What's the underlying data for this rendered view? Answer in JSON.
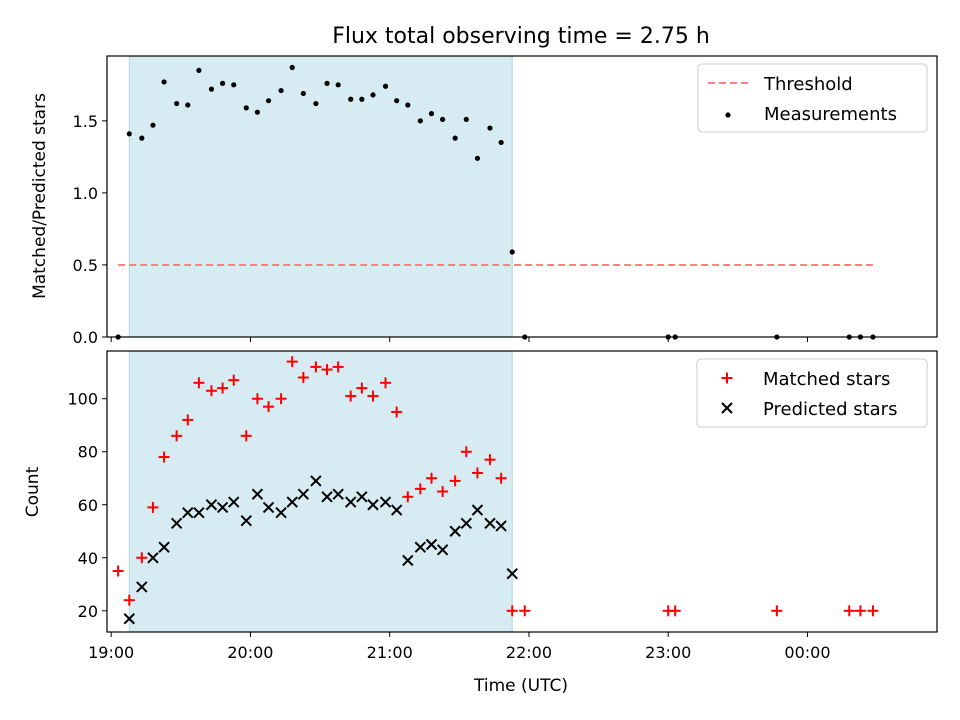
{
  "chart_data": [
    {
      "type": "scatter",
      "title": "Flux total observing time = 2.75 h",
      "xlabel": "",
      "ylabel": "Matched/Predicted stars",
      "ylim": [
        0,
        1.95
      ],
      "yticks": [
        0.0,
        0.5,
        1.0,
        1.5
      ],
      "ytick_labels": [
        "0.0",
        "0.5",
        "1.0",
        "1.5"
      ],
      "xlim_hours": [
        18.97,
        24.93
      ],
      "shaded_span_hours": [
        19.13,
        21.88
      ],
      "shade_color": "#add8e6",
      "legend_position": "upper right",
      "threshold": {
        "name": "Threshold",
        "value": 0.5,
        "x_hours": [
          19.05,
          24.47
        ],
        "color": "#ff7f7f",
        "style": "dashed"
      },
      "series": [
        {
          "name": "Measurements",
          "color": "#000000",
          "marker": "dot",
          "x_hours": [
            19.05,
            19.13,
            19.22,
            19.3,
            19.38,
            19.47,
            19.55,
            19.63,
            19.72,
            19.8,
            19.88,
            19.97,
            20.05,
            20.13,
            20.22,
            20.3,
            20.38,
            20.47,
            20.55,
            20.63,
            20.72,
            20.8,
            20.88,
            20.97,
            21.05,
            21.13,
            21.22,
            21.3,
            21.38,
            21.47,
            21.55,
            21.63,
            21.72,
            21.8,
            21.88,
            21.97,
            23.0,
            23.05,
            23.78,
            24.3,
            24.38,
            24.47
          ],
          "y": [
            0.0,
            1.41,
            1.38,
            1.47,
            1.77,
            1.62,
            1.61,
            1.85,
            1.72,
            1.76,
            1.75,
            1.59,
            1.56,
            1.64,
            1.71,
            1.87,
            1.69,
            1.62,
            1.76,
            1.75,
            1.65,
            1.65,
            1.68,
            1.74,
            1.64,
            1.61,
            1.5,
            1.55,
            1.51,
            1.38,
            1.51,
            1.24,
            1.45,
            1.35,
            0.59,
            0.0,
            0.0,
            0.0,
            0.0,
            0.0,
            0.0,
            0.0
          ]
        }
      ]
    },
    {
      "type": "scatter",
      "title": "",
      "xlabel": "Time (UTC)",
      "ylabel": "Count",
      "ylim": [
        12,
        118
      ],
      "yticks": [
        20,
        40,
        60,
        80,
        100
      ],
      "ytick_labels": [
        "20",
        "40",
        "60",
        "80",
        "100"
      ],
      "xlim_hours": [
        18.97,
        24.93
      ],
      "xticks_hours": [
        19,
        20,
        21,
        22,
        23,
        24
      ],
      "xtick_labels": [
        "19:00",
        "20:00",
        "21:00",
        "22:00",
        "23:00",
        "00:00"
      ],
      "shaded_span_hours": [
        19.13,
        21.88
      ],
      "shade_color": "#add8e6",
      "legend_position": "upper right",
      "series": [
        {
          "name": "Matched stars",
          "color": "#ff0000",
          "marker": "plus",
          "x_hours": [
            19.05,
            19.13,
            19.22,
            19.3,
            19.38,
            19.47,
            19.55,
            19.63,
            19.72,
            19.8,
            19.88,
            19.97,
            20.05,
            20.13,
            20.22,
            20.3,
            20.38,
            20.47,
            20.55,
            20.63,
            20.72,
            20.8,
            20.88,
            20.97,
            21.05,
            21.13,
            21.22,
            21.3,
            21.38,
            21.47,
            21.55,
            21.63,
            21.72,
            21.8,
            21.88,
            21.97,
            23.0,
            23.05,
            23.78,
            24.3,
            24.38,
            24.47
          ],
          "y": [
            35,
            24,
            40,
            59,
            78,
            86,
            92,
            106,
            103,
            104,
            107,
            86,
            100,
            97,
            100,
            114,
            108,
            112,
            111,
            112,
            101,
            104,
            101,
            106,
            95,
            63,
            66,
            70,
            65,
            69,
            80,
            72,
            77,
            70,
            20,
            20,
            20,
            20,
            20,
            20,
            20,
            20
          ]
        },
        {
          "name": "Predicted stars",
          "color": "#000000",
          "marker": "x",
          "x_hours": [
            19.13,
            19.22,
            19.3,
            19.38,
            19.47,
            19.55,
            19.63,
            19.72,
            19.8,
            19.88,
            19.97,
            20.05,
            20.13,
            20.22,
            20.3,
            20.38,
            20.47,
            20.55,
            20.63,
            20.72,
            20.8,
            20.88,
            20.97,
            21.05,
            21.13,
            21.22,
            21.3,
            21.38,
            21.47,
            21.55,
            21.63,
            21.72,
            21.8,
            21.88
          ],
          "y": [
            17,
            29,
            40,
            44,
            53,
            57,
            57,
            60,
            59,
            61,
            54,
            64,
            59,
            57,
            61,
            64,
            69,
            63,
            64,
            61,
            63,
            60,
            61,
            58,
            39,
            44,
            45,
            43,
            50,
            53,
            58,
            53,
            52,
            34
          ]
        }
      ]
    }
  ]
}
